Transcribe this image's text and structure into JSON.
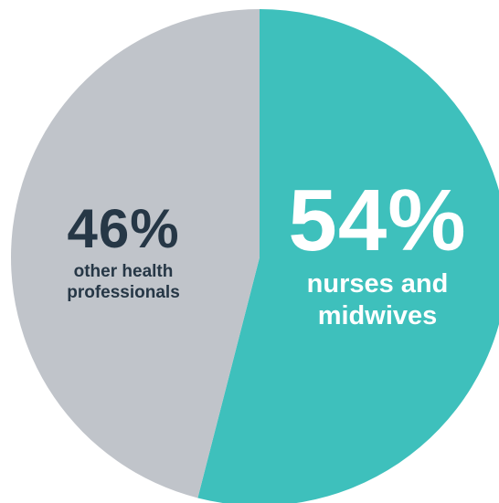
{
  "chart_data": {
    "type": "pie",
    "slices": [
      {
        "value": 54,
        "label_pct": "54%",
        "label_lines": [
          "nurses and",
          "midwives"
        ],
        "color": "#3ec0bc",
        "text_color": "#ffffff"
      },
      {
        "value": 46,
        "label_pct": "46%",
        "label_lines": [
          "other health",
          "professionals"
        ],
        "color": "#c0c4ca",
        "text_color": "#263746"
      }
    ],
    "start_angle_deg": 0,
    "direction": "clockwise"
  }
}
